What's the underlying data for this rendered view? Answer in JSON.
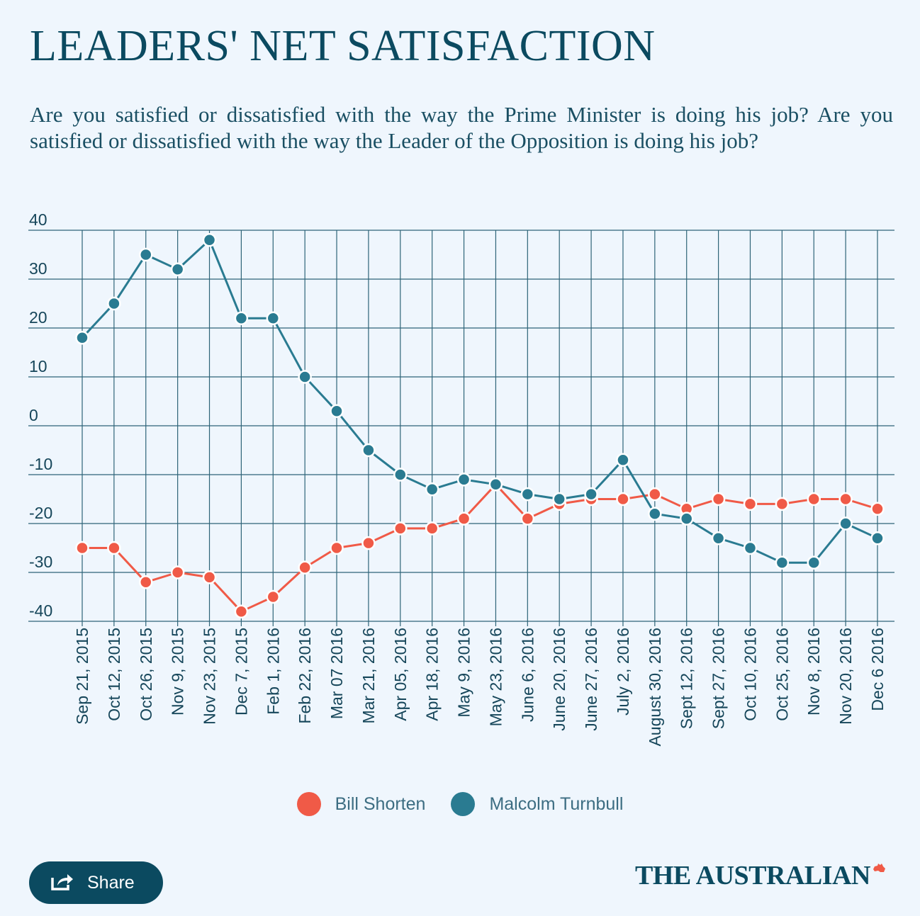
{
  "header": {
    "title": "LEADERS' NET SATISFACTION",
    "subtitle": "Are you satisfied or dissatisfied with the way the Prime Minister is doing his job? Are you satisfied or dissatisfied with the way the Leader of the Opposition is doing his job?"
  },
  "chart_data": {
    "type": "line",
    "title": "LEADERS' NET SATISFACTION",
    "xlabel": "",
    "ylabel": "",
    "ylim": [
      -40,
      40
    ],
    "yticks": [
      40,
      30,
      20,
      10,
      0,
      -10,
      -20,
      -30,
      -40
    ],
    "grid": true,
    "legend_position": "bottom",
    "categories": [
      "Sep 21, 2015",
      "Oct 12, 2015",
      "Oct 26, 2015",
      "Nov 9, 2015",
      "Nov 23, 2015",
      "Dec 7, 2015",
      "Feb 1, 2016",
      "Feb 22, 2016",
      "Mar 07 2016",
      "Mar 21, 2016",
      "Apr 05, 2016",
      "Apr 18, 2016",
      "May 9, 2016",
      "May 23, 2016",
      "June 6, 2016",
      "June 20, 2016",
      "June 27, 2016",
      "July 2, 2016",
      "August 30, 2016",
      "Sept 12, 2016",
      "Sept 27, 2016",
      "Oct 10, 2016",
      "Oct 25, 2016",
      "Nov 8, 2016",
      "Nov 20, 2016",
      "Dec 6 2016"
    ],
    "series": [
      {
        "name": "Bill Shorten",
        "color": "#f05a47",
        "values": [
          -25,
          -25,
          -32,
          -30,
          -31,
          -38,
          -35,
          -29,
          -25,
          -24,
          -21,
          -21,
          -19,
          -12,
          -19,
          -16,
          -15,
          -15,
          -14,
          -17,
          -15,
          -16,
          -16,
          -15,
          -15,
          -17
        ]
      },
      {
        "name": "Malcolm Turnbull",
        "color": "#2a7b91",
        "values": [
          18,
          25,
          35,
          32,
          38,
          22,
          22,
          10,
          3,
          -5,
          -10,
          -13,
          -11,
          -12,
          -14,
          -15,
          -14,
          -7,
          -18,
          -19,
          -23,
          -25,
          -28,
          -28,
          -20,
          -23
        ]
      }
    ]
  },
  "share": {
    "label": "Share",
    "icon": "share-icon"
  },
  "branding": {
    "logo_text": "THE AUSTRALIAN"
  }
}
